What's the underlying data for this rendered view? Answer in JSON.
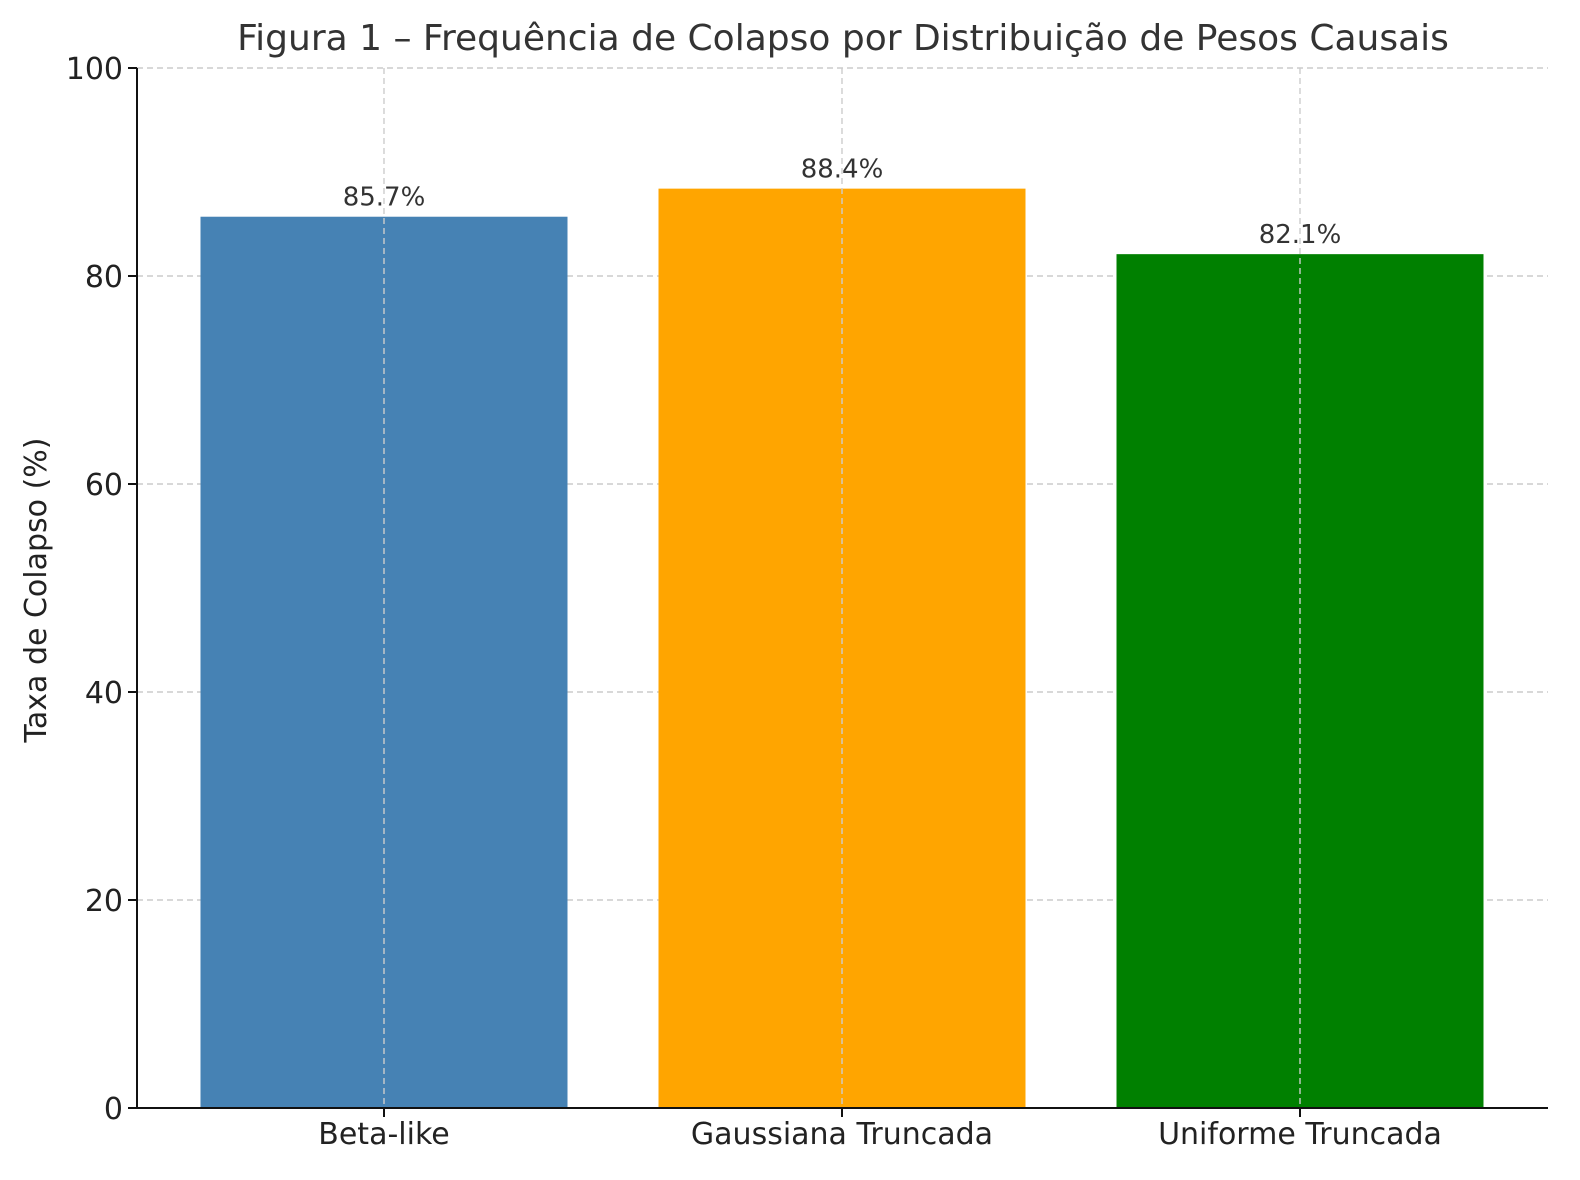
{
  "chart_data": {
    "type": "bar",
    "title": "Figura 1 – Frequência de Colapso por Distribuição de Pesos Causais",
    "xlabel": "",
    "ylabel": "Taxa de Colapso (%)",
    "categories": [
      "Beta-like",
      "Gaussiana Truncada",
      "Uniforme Truncada"
    ],
    "values": [
      85.7,
      88.4,
      82.1
    ],
    "value_labels": [
      "85.7%",
      "88.4%",
      "82.1%"
    ],
    "colors": [
      "#4682b4",
      "#ffa500",
      "#008000"
    ],
    "ylim": [
      0,
      100
    ],
    "yticks": [
      0,
      20,
      40,
      60,
      80,
      100
    ],
    "ytick_labels": [
      "0",
      "20",
      "40",
      "60",
      "80",
      "100"
    ],
    "grid": true
  }
}
